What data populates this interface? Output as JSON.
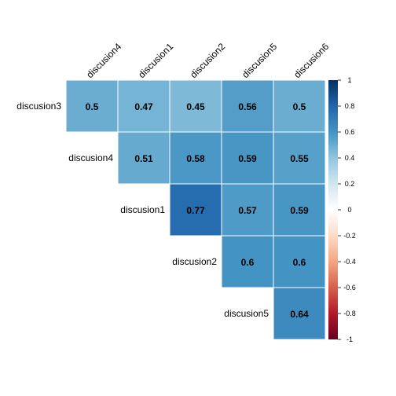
{
  "chart_data": {
    "type": "heatmap",
    "title": "",
    "col_labels": [
      "discusion4",
      "discusion1",
      "discusion2",
      "discusion5",
      "discusion6"
    ],
    "row_labels": [
      "discusion3",
      "discusion4",
      "discusion1",
      "discusion2",
      "discusion5"
    ],
    "matrix": [
      [
        0.5,
        0.47,
        0.45,
        0.56,
        0.5
      ],
      [
        null,
        0.51,
        0.58,
        0.59,
        0.55
      ],
      [
        null,
        null,
        0.77,
        0.57,
        0.59
      ],
      [
        null,
        null,
        null,
        0.6,
        0.6
      ],
      [
        null,
        null,
        null,
        null,
        0.64
      ]
    ],
    "colorbar": {
      "min": -1,
      "max": 1,
      "ticks": [
        "1",
        "0.8",
        "0.6",
        "0.4",
        "0.2",
        "0",
        "-0.2",
        "-0.4",
        "-0.6",
        "-0.8",
        "-1"
      ],
      "colors": [
        "#67001F",
        "#B2182B",
        "#D6604D",
        "#F4A582",
        "#FDDBC7",
        "#FFFFFF",
        "#D1E5F0",
        "#92C5DE",
        "#4393C3",
        "#2166AC",
        "#053061"
      ]
    }
  }
}
